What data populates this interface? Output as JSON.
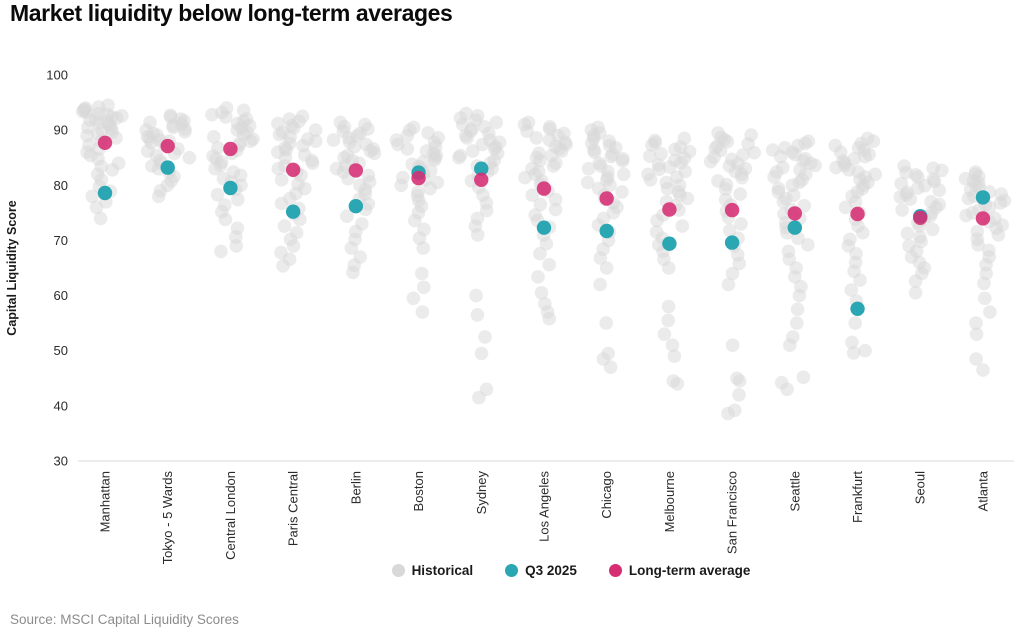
{
  "title": "Market liquidity below long-term averages",
  "source": "Source: MSCI Capital Liquidity Scores",
  "legend": [
    {
      "label": "Historical",
      "color": "#d8d8d8"
    },
    {
      "label": "Q3 2025",
      "color": "#2ba6b3"
    },
    {
      "label": "Long-term average",
      "color": "#d62e73"
    }
  ],
  "chart_data": {
    "type": "scatter",
    "subtype": "strip-plot",
    "title": "Market liquidity below long-term averages",
    "xlabel": "",
    "ylabel": "Capital Liquidity Score",
    "ylim": [
      30,
      100
    ],
    "yticks": [
      100,
      90,
      80,
      70,
      60,
      50,
      40,
      30
    ],
    "grid": false,
    "legend_position": "bottom",
    "colors": {
      "historical": "#d8d8d8",
      "q3_2025": "#2ba6b3",
      "long_term_average": "#d62e73",
      "axis_line": "#d9d9d9"
    },
    "cities": [
      {
        "name": "Manhattan",
        "q3_2025": 78.6,
        "long_term_average": 87.7,
        "historical": [
          94.5,
          94.2,
          94,
          93.8,
          93.6,
          93.4,
          93.2,
          93,
          92.8,
          92.6,
          92.4,
          92.2,
          92,
          91.8,
          91.5,
          91.3,
          91,
          90.8,
          90.5,
          90.2,
          90,
          89.6,
          89.3,
          89,
          88.6,
          88,
          87.3,
          86.6,
          86,
          85.4,
          84.8,
          84,
          83.4,
          82.8,
          82,
          81,
          79.8,
          78.9,
          78,
          77,
          76,
          74
        ]
      },
      {
        "name": "Tokyo - 5 Wards",
        "q3_2025": 83.2,
        "long_term_average": 87.1,
        "historical": [
          92.7,
          92.4,
          92,
          91.7,
          91.4,
          91.1,
          90.8,
          90.5,
          90.2,
          90,
          89.7,
          89.4,
          89.1,
          88.8,
          88.5,
          88.2,
          88,
          87.7,
          87.4,
          87,
          86.6,
          86.2,
          85.8,
          85.4,
          85,
          84.5,
          84,
          83.5,
          83,
          82.3,
          81.6,
          80.8,
          80,
          79,
          78
        ]
      },
      {
        "name": "Central London",
        "q3_2025": 79.5,
        "long_term_average": 86.6,
        "historical": [
          94,
          93.6,
          93.2,
          92.8,
          92.4,
          92,
          91.6,
          91.2,
          90.8,
          90.4,
          90,
          89.6,
          89.2,
          88.8,
          88.4,
          88,
          87.6,
          87.2,
          86.8,
          86.3,
          85.8,
          85.3,
          84.8,
          84.2,
          83.6,
          83,
          82.4,
          81.8,
          81.2,
          80.6,
          80,
          79.2,
          78.3,
          77.4,
          76.4,
          75.2,
          73.8,
          72.2,
          70.6,
          69,
          68
        ]
      },
      {
        "name": "Paris Central",
        "q3_2025": 75.2,
        "long_term_average": 82.8,
        "historical": [
          92.5,
          92,
          91.6,
          91.2,
          90.8,
          90.4,
          90,
          89.6,
          89.2,
          88.8,
          88.4,
          88,
          87.6,
          87.2,
          86.8,
          86.4,
          86,
          85.5,
          85,
          84.5,
          84,
          83.5,
          83,
          82.4,
          81.8,
          81,
          80.2,
          79.4,
          78.5,
          77.6,
          76.7,
          75.8,
          74.8,
          73.8,
          72.6,
          71.4,
          70.2,
          69,
          67.8,
          66.6,
          65.4
        ]
      },
      {
        "name": "Berlin",
        "q3_2025": 76.2,
        "long_term_average": 82.7,
        "historical": [
          91.4,
          91,
          90.6,
          90.2,
          89.8,
          89.4,
          89,
          88.6,
          88.2,
          87.8,
          87.4,
          87,
          86.6,
          86.2,
          85.8,
          85.4,
          85,
          84.5,
          84,
          83.5,
          83,
          82.4,
          81.8,
          81.2,
          80.6,
          80,
          79.2,
          78.4,
          77.5,
          76.6,
          75.6,
          74.4,
          73,
          71.6,
          70.2,
          68.6,
          67,
          65.5,
          64.2
        ]
      },
      {
        "name": "Boston",
        "q3_2025": 82.3,
        "long_term_average": 81.3,
        "historical": [
          90.5,
          90,
          89.5,
          89,
          88.6,
          88.2,
          87.8,
          87.4,
          87,
          86.6,
          86.2,
          85.8,
          85.4,
          85,
          84.6,
          84.2,
          83.8,
          83.4,
          83,
          82.6,
          82.2,
          81.8,
          81.4,
          81,
          80.5,
          80,
          79.4,
          78.8,
          78.1,
          77.2,
          76.2,
          75,
          73.6,
          72,
          70.4,
          68.6,
          64,
          61.5,
          59.5,
          57
        ]
      },
      {
        "name": "Sydney",
        "q3_2025": 83.0,
        "long_term_average": 81.0,
        "historical": [
          93,
          92.6,
          92.2,
          91.8,
          91.4,
          91,
          90.6,
          90.2,
          89.8,
          89.4,
          89,
          88.6,
          88.2,
          87.8,
          87.4,
          87,
          86.6,
          86.2,
          85.8,
          85.4,
          85,
          84.5,
          84,
          83.5,
          83,
          82.4,
          81.7,
          80.8,
          79.6,
          78.2,
          76.8,
          75.4,
          74,
          72.6,
          71,
          60,
          56.5,
          52.5,
          49.5,
          43,
          41.5
        ]
      },
      {
        "name": "Los Angeles",
        "q3_2025": 72.3,
        "long_term_average": 79.4,
        "historical": [
          91.4,
          91,
          90.6,
          90.2,
          89.8,
          89.4,
          89,
          88.6,
          88.2,
          87.8,
          87.4,
          87,
          86.6,
          86.2,
          85.8,
          85.4,
          85,
          84.5,
          84,
          83.5,
          83,
          82.5,
          82,
          81.4,
          80.8,
          80.2,
          79.6,
          79,
          78.2,
          77.4,
          76.5,
          75.6,
          74.6,
          73.6,
          72.4,
          71,
          69.4,
          67.6,
          65.6,
          63.4,
          60.5,
          58.5,
          57,
          55.8
        ]
      },
      {
        "name": "Chicago",
        "q3_2025": 71.7,
        "long_term_average": 77.6,
        "historical": [
          90.5,
          90,
          89.5,
          89,
          88.5,
          88,
          87.6,
          87.2,
          86.8,
          86.4,
          86,
          85.6,
          85.2,
          84.8,
          84.4,
          84,
          83.5,
          83,
          82.5,
          82,
          81.5,
          81,
          80.5,
          80,
          79.4,
          78.8,
          78.2,
          77.5,
          76.8,
          76,
          75,
          74,
          72.8,
          71.5,
          70,
          68.4,
          66.8,
          65,
          62,
          55,
          49.5,
          48.5,
          47
        ]
      },
      {
        "name": "Melbourne",
        "q3_2025": 69.4,
        "long_term_average": 75.6,
        "historical": [
          88.5,
          88.1,
          87.7,
          87.3,
          86.9,
          86.5,
          86.1,
          85.7,
          85.3,
          84.9,
          84.5,
          84.1,
          83.7,
          83.3,
          82.9,
          82.5,
          82,
          81.5,
          81,
          80.5,
          80,
          79.4,
          78.8,
          78.2,
          77.6,
          77,
          76.3,
          75.5,
          74.6,
          73.6,
          72.6,
          71.5,
          70.4,
          69.2,
          68,
          66.6,
          65,
          58,
          55.5,
          53,
          51,
          49,
          44.5,
          44
        ]
      },
      {
        "name": "San Francisco",
        "q3_2025": 69.6,
        "long_term_average": 75.5,
        "historical": [
          89.5,
          89.1,
          88.7,
          88.3,
          87.9,
          87.5,
          87.1,
          86.7,
          86.3,
          85.9,
          85.5,
          85.1,
          84.7,
          84.3,
          83.9,
          83.5,
          83,
          82.5,
          82,
          81.4,
          80.8,
          80.1,
          79.3,
          78.4,
          77.4,
          76.4,
          75.3,
          74.2,
          73,
          71.8,
          70.4,
          69,
          67.4,
          65.8,
          64,
          62,
          51,
          45,
          44.5,
          42,
          39.2,
          38.6
        ]
      },
      {
        "name": "Seattle",
        "q3_2025": 72.3,
        "long_term_average": 74.9,
        "historical": [
          88,
          87.6,
          87.2,
          86.8,
          86.4,
          86,
          85.6,
          85.2,
          84.8,
          84.4,
          84,
          83.6,
          83.2,
          82.8,
          82.4,
          82,
          81.5,
          81,
          80.5,
          80,
          79.4,
          78.8,
          78.2,
          77.6,
          77,
          76.3,
          75.6,
          74.8,
          74,
          73.2,
          72.3,
          71.4,
          70.4,
          69.2,
          68,
          66.6,
          65,
          63.4,
          61.6,
          60,
          57.5,
          55,
          52.5,
          51,
          45.2,
          44.2,
          43
        ]
      },
      {
        "name": "Frankfurt",
        "q3_2025": 57.6,
        "long_term_average": 74.8,
        "historical": [
          88.5,
          88,
          87.6,
          87.2,
          86.8,
          86.4,
          86,
          85.6,
          85.2,
          84.8,
          84.4,
          84,
          83.6,
          83.2,
          82.8,
          82.4,
          82,
          81.5,
          81,
          80.5,
          80,
          79.4,
          78.8,
          78,
          77,
          76,
          75,
          73.8,
          72.6,
          71.4,
          70.2,
          69,
          67.6,
          66,
          64.4,
          62.8,
          61,
          59,
          55,
          51.5,
          50,
          49.6
        ]
      },
      {
        "name": "Seoul",
        "q3_2025": 74.4,
        "long_term_average": 74.1,
        "historical": [
          83.5,
          83.1,
          82.7,
          82.3,
          81.9,
          81.5,
          81.1,
          80.7,
          80.3,
          79.9,
          79.5,
          79.1,
          78.7,
          78.3,
          77.9,
          77.5,
          77,
          76.5,
          76,
          75.5,
          75,
          74.4,
          73.8,
          73.2,
          72.6,
          72,
          71.3,
          70.6,
          69.8,
          69,
          68,
          67,
          66,
          65,
          64,
          62.6,
          60.5
        ]
      },
      {
        "name": "Atlanta",
        "q3_2025": 77.8,
        "long_term_average": 74.0,
        "historical": [
          82.4,
          82,
          81.6,
          81.2,
          80.8,
          80.4,
          80,
          79.6,
          79.2,
          78.8,
          78.4,
          78,
          77.6,
          77.2,
          76.8,
          76.4,
          76,
          75.5,
          75,
          74.5,
          74,
          73.4,
          72.8,
          72.2,
          71.6,
          71,
          70.2,
          69.2,
          68.2,
          67,
          65.6,
          64,
          62.2,
          59.5,
          57,
          55,
          53,
          48.5,
          46.5
        ]
      }
    ]
  }
}
